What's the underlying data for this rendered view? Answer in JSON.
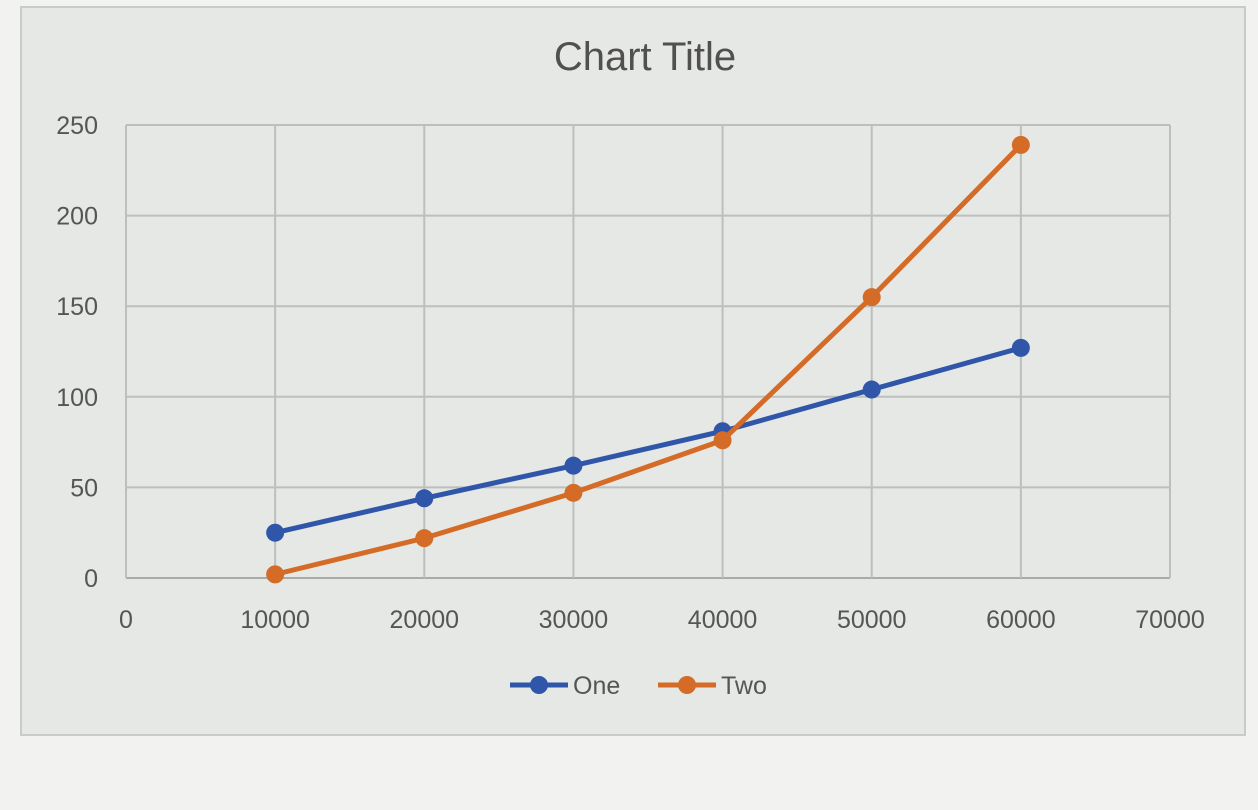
{
  "chart_data": {
    "type": "line",
    "title": "Chart Title",
    "xlabel": "",
    "ylabel": "",
    "xlim": [
      0,
      70000
    ],
    "ylim": [
      0,
      250
    ],
    "xticks": [
      "0",
      "10000",
      "20000",
      "30000",
      "40000",
      "50000",
      "60000",
      "70000"
    ],
    "yticks": [
      "0",
      "50",
      "100",
      "150",
      "200",
      "250"
    ],
    "grid": true,
    "legend": "bottom",
    "x": [
      10000,
      20000,
      30000,
      40000,
      50000,
      60000
    ],
    "series": [
      {
        "name": "One",
        "color": "#2f56a8",
        "values": [
          25,
          44,
          62,
          81,
          104,
          127
        ]
      },
      {
        "name": "Two",
        "color": "#d46b26",
        "values": [
          2,
          22,
          47,
          76,
          155,
          239
        ]
      }
    ]
  }
}
